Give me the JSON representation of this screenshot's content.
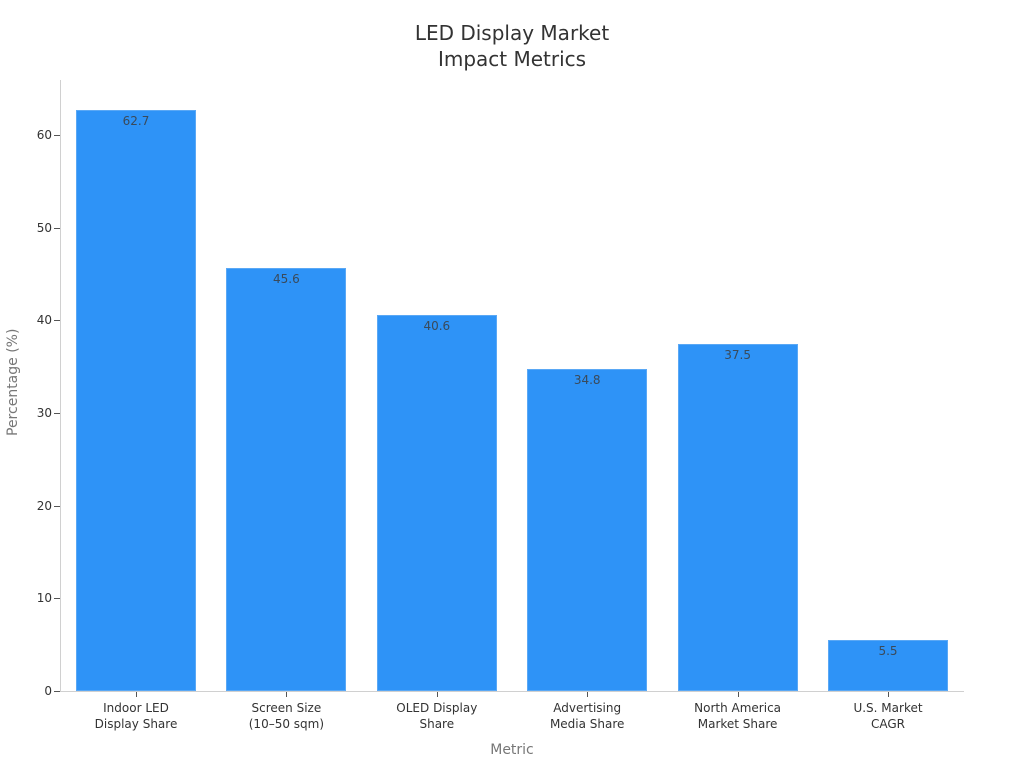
{
  "chart_data": {
    "type": "bar",
    "title": "LED Display Market Impact Metrics",
    "title_lines": [
      "LED Display Market",
      "Impact Metrics"
    ],
    "xlabel": "Metric",
    "ylabel": "Percentage (%)",
    "categories": [
      "Indoor LED Display Share",
      "Screen Size (10–50 sqm)",
      "OLED Display Share",
      "Advertising Media Share",
      "North America Market Share",
      "U.S. Market CAGR"
    ],
    "category_lines": [
      [
        "Indoor LED",
        "Display Share"
      ],
      [
        "Screen Size",
        "(10–50 sqm)"
      ],
      [
        "OLED Display",
        "Share"
      ],
      [
        "Advertising",
        "Media Share"
      ],
      [
        "North America",
        "Market Share"
      ],
      [
        "U.S. Market",
        "CAGR"
      ]
    ],
    "values": [
      62.7,
      45.6,
      40.6,
      34.8,
      37.5,
      5.5
    ],
    "value_labels": [
      "62.7",
      "45.6",
      "40.6",
      "34.8",
      "37.5",
      "5.5"
    ],
    "yticks": [
      0,
      10,
      20,
      30,
      40,
      50,
      60
    ],
    "ylim": [
      0,
      66
    ],
    "grid": false,
    "legend": null,
    "bar_color": "#2e93f7"
  }
}
